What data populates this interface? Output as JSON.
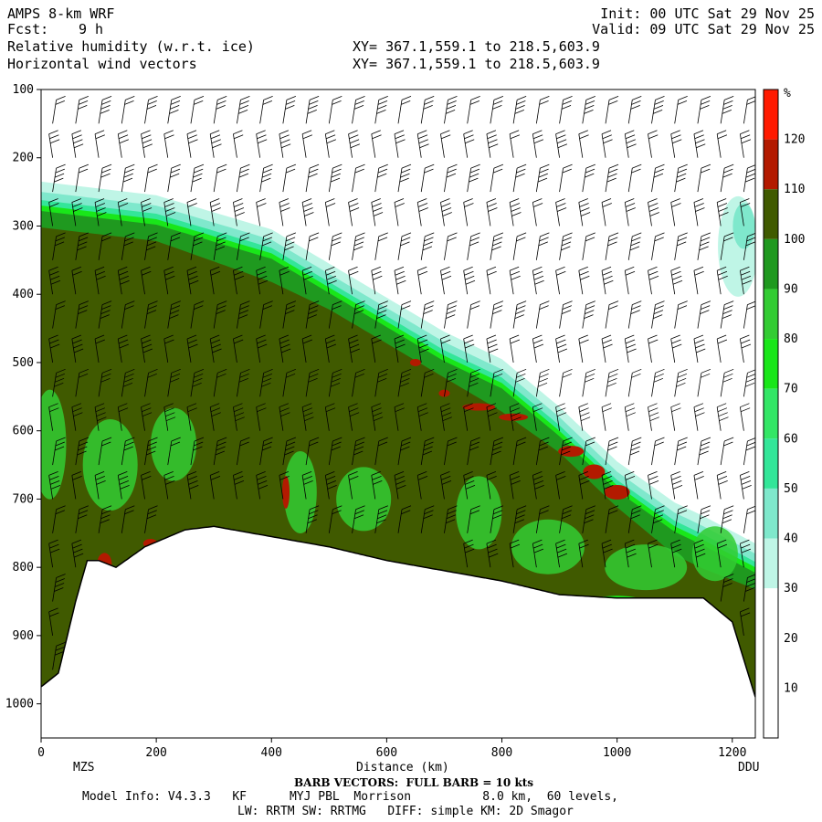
{
  "header": {
    "model": "AMPS 8-km WRF",
    "fcst_label": "Fcst:",
    "fcst_value": "9 h",
    "field1": "Relative humidity (w.r.t. ice)",
    "field2": "Horizontal wind vectors",
    "init": "Init: 00 UTC Sat 29 Nov 25",
    "valid": "Valid: 09 UTC Sat 29 Nov 25",
    "xy1": "XY= 367.1,559.1 to 218.5,603.9",
    "xy2": "XY= 367.1,559.1 to 218.5,603.9"
  },
  "footer": {
    "barb": "BARB VECTORS:  FULL BARB = 10 kts",
    "model_info": "Model Info: V4.3.3   KF      MYJ PBL  Morrison          8.0 km,  60 levels,",
    "model_info2": "LW: RRTM SW: RRTMG   DIFF: simple KM: 2D Smagor"
  },
  "colors": {
    "land": "#ffffff",
    "white_band": "#ffffff",
    "c30_40": "#bff5e6",
    "c40_50": "#7fe8cc",
    "c50_60": "#33e699",
    "c60_70": "#33e666",
    "c70_80": "#19e619",
    "c80_90": "#33cc33",
    "c90_100": "#1f991f",
    "c100_110": "#405a00",
    "c110_120": "#b31a00",
    "c120plus": "#ff1a00"
  },
  "chart_data": {
    "type": "heatmap",
    "xlabel": "Distance (km)",
    "ylabel": "",
    "xlim": [
      0,
      1240
    ],
    "ylim": [
      1050,
      100
    ],
    "x_ticks": [
      0,
      200,
      400,
      600,
      800,
      1000,
      1200
    ],
    "y_ticks": [
      100,
      200,
      300,
      400,
      500,
      600,
      700,
      800,
      900,
      1000
    ],
    "endpoint_left": "MZS",
    "endpoint_right": "DDU",
    "colorbar": {
      "unit": "%",
      "levels": [
        10,
        20,
        30,
        40,
        50,
        60,
        70,
        80,
        90,
        100,
        110,
        120
      ],
      "colors": [
        "#ffffff",
        "#ffffff",
        "#ffffff",
        "#bff5e6",
        "#7fe8cc",
        "#33e699",
        "#33e666",
        "#19e619",
        "#33cc33",
        "#1f991f",
        "#405a00",
        "#b31a00",
        "#ff1a00"
      ]
    },
    "terrain_pressure_hpa": [
      [
        0,
        975
      ],
      [
        30,
        955
      ],
      [
        60,
        850
      ],
      [
        80,
        790
      ],
      [
        100,
        790
      ],
      [
        130,
        800
      ],
      [
        180,
        770
      ],
      [
        250,
        745
      ],
      [
        300,
        740
      ],
      [
        400,
        755
      ],
      [
        500,
        770
      ],
      [
        600,
        790
      ],
      [
        700,
        805
      ],
      [
        800,
        820
      ],
      [
        850,
        830
      ],
      [
        900,
        840
      ],
      [
        1000,
        845
      ],
      [
        1100,
        845
      ],
      [
        1150,
        845
      ],
      [
        1200,
        880
      ],
      [
        1240,
        990
      ]
    ],
    "moist_layer_top_hpa": [
      [
        0,
        270
      ],
      [
        200,
        290
      ],
      [
        400,
        340
      ],
      [
        500,
        390
      ],
      [
        600,
        440
      ],
      [
        700,
        490
      ],
      [
        800,
        530
      ],
      [
        900,
        600
      ],
      [
        1000,
        680
      ],
      [
        1100,
        740
      ],
      [
        1150,
        760
      ],
      [
        1240,
        800
      ]
    ],
    "saturated_top_hpa": [
      [
        0,
        290
      ],
      [
        200,
        310
      ],
      [
        400,
        370
      ],
      [
        500,
        410
      ],
      [
        600,
        460
      ],
      [
        700,
        510
      ],
      [
        800,
        560
      ],
      [
        900,
        620
      ],
      [
        1000,
        700
      ],
      [
        1100,
        770
      ],
      [
        1150,
        790
      ],
      [
        1240,
        820
      ]
    ],
    "barb_columns_km": [
      20,
      60,
      100,
      140,
      180,
      220,
      260,
      300,
      340,
      380,
      420,
      460,
      500,
      540,
      580,
      620,
      660,
      700,
      740,
      780,
      820,
      860,
      900,
      940,
      980,
      1020,
      1060,
      1100,
      1140,
      1180,
      1220
    ],
    "barb_levels_hpa": [
      150,
      200,
      250,
      300,
      350,
      400,
      450,
      500,
      550,
      600,
      650,
      700,
      750,
      800,
      850,
      900,
      950
    ]
  }
}
